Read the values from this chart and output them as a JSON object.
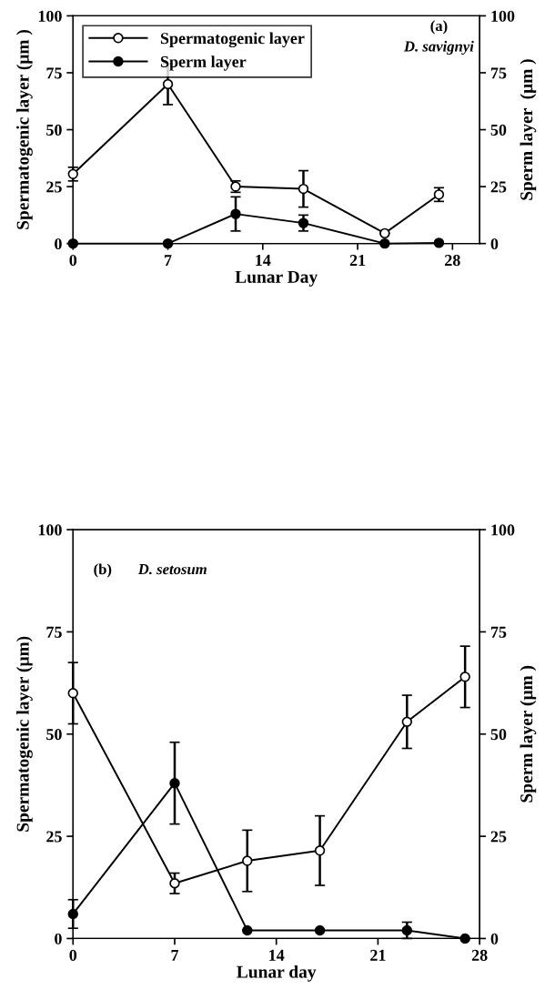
{
  "chart_data": [
    {
      "type": "line",
      "xlabel": "Lunar Day",
      "ylabel": "Spermatogenic layer (μm )",
      "y2label": "Sperm layer  (μm )",
      "x": [
        0,
        7,
        12,
        17,
        23,
        27
      ],
      "xlim": [
        0,
        30
      ],
      "xticks": [
        0,
        7,
        14,
        21,
        28
      ],
      "ylim": [
        0,
        100
      ],
      "yticks": [
        0,
        25,
        50,
        75,
        100
      ],
      "y2lim": [
        0,
        100
      ],
      "y2ticks": [
        0,
        25,
        50,
        75,
        100
      ],
      "marker": "circle",
      "line_style": "solid",
      "grid": false,
      "legend": "top left",
      "annotations": [
        "(a)",
        "D. savignyi"
      ],
      "series": [
        {
          "name": "Spermatogenic layer",
          "color": "#ffffff",
          "values": [
            30.5,
            70,
            25,
            24,
            4.5,
            21.5
          ],
          "errors": [
            3,
            9,
            2.5,
            8,
            null,
            3
          ]
        },
        {
          "name": "Sperm layer",
          "color": "#000000",
          "axis": "y2",
          "values": [
            0,
            0,
            13,
            9,
            0,
            0.3
          ],
          "errors": [
            null,
            null,
            7.5,
            3.5,
            null,
            null
          ]
        }
      ]
    },
    {
      "type": "line",
      "xlabel": "Lunar day",
      "ylabel": "Spermatogenic layer (μm)",
      "y2label": "Sperm layer (μm )",
      "x": [
        0,
        7,
        12,
        17,
        23,
        27
      ],
      "xlim": [
        0,
        28
      ],
      "xticks": [
        0,
        7,
        14,
        21,
        28
      ],
      "ylim": [
        0,
        100
      ],
      "yticks": [
        0,
        25,
        50,
        75,
        100
      ],
      "y2lim": [
        0,
        100
      ],
      "y2ticks": [
        0,
        25,
        50,
        75,
        100
      ],
      "marker": "circle",
      "line_style": "solid",
      "grid": false,
      "legend": false,
      "annotations": [
        "(b)",
        "D. setosum"
      ],
      "series": [
        {
          "color": "#ffffff",
          "values": [
            60,
            13.5,
            19,
            21.5,
            53,
            64
          ],
          "errors": [
            7.5,
            2.5,
            7.5,
            8.5,
            6.5,
            7.5
          ]
        },
        {
          "color": "#000000",
          "axis": "y2",
          "values": [
            6,
            38,
            2,
            2,
            2,
            0
          ],
          "errors": [
            3.5,
            10,
            null,
            null,
            2,
            null
          ]
        }
      ]
    }
  ]
}
